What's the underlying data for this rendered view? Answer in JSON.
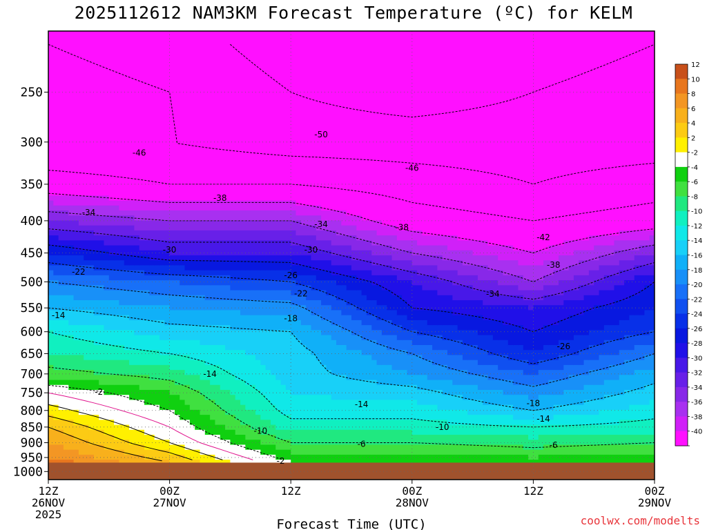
{
  "title": "2025112612 NAM3KM Forecast Temperature (ºC) for KELM",
  "watermark": "coolwx.com/modelts",
  "chart_data": {
    "type": "heatmap",
    "title": "2025112612 NAM3KM Forecast Temperature (ºC) for KELM",
    "xlabel": "Forecast Time (UTC)",
    "ylabel": "",
    "x_ticks": [
      {
        "hour": 0,
        "lines": [
          "12Z",
          "26NOV",
          "2025"
        ]
      },
      {
        "hour": 12,
        "lines": [
          "00Z",
          "27NOV"
        ]
      },
      {
        "hour": 24,
        "lines": [
          "12Z",
          ""
        ]
      },
      {
        "hour": 36,
        "lines": [
          "00Z",
          "28NOV"
        ]
      },
      {
        "hour": 48,
        "lines": [
          "12Z",
          ""
        ]
      },
      {
        "hour": 60,
        "lines": [
          "00Z",
          "29NOV"
        ]
      }
    ],
    "y_ticks": [
      250,
      300,
      350,
      400,
      450,
      500,
      550,
      600,
      650,
      700,
      750,
      800,
      850,
      900,
      950,
      1000
    ],
    "ylim": [
      200,
      1030
    ],
    "xlim": [
      0,
      60
    ],
    "log_pressure_axis": true,
    "grid": true,
    "colorbar": {
      "labels": [
        "12",
        "10",
        "8",
        "6",
        "4",
        "2",
        "-2",
        "-4",
        "-6",
        "-8",
        "-10",
        "-12",
        "-14",
        "-16",
        "-18",
        "-20",
        "-22",
        "-24",
        "-26",
        "-28",
        "-30",
        "-32",
        "-34",
        "-36",
        "-38",
        "-40"
      ],
      "colors": [
        "#c8501a",
        "#e8761e",
        "#f39624",
        "#f8b01c",
        "#fccb14",
        "#fff000",
        "#ffffff",
        "#10d010",
        "#40e040",
        "#20e880",
        "#10f0c0",
        "#10e8e8",
        "#18d0f8",
        "#10b0f8",
        "#1890f8",
        "#1870f8",
        "#1050f0",
        "#0830e8",
        "#0818e0",
        "#2010e8",
        "#4818e8",
        "#6820e8",
        "#8828e8",
        "#a830f0",
        "#d020f8",
        "#ff10ff"
      ]
    },
    "profiles": [
      {
        "hour": 0,
        "temps": {
          "250": -44,
          "300": -46,
          "350": -40,
          "400": -32,
          "450": -24,
          "500": -18,
          "550": -14,
          "600": -10,
          "650": -8,
          "700": -5,
          "750": 0,
          "800": 3,
          "850": 6,
          "900": 8,
          "950": 10
        }
      },
      {
        "hour": 12,
        "temps": {
          "250": -46,
          "300": -46,
          "350": -42,
          "400": -34,
          "450": -28,
          "500": -20,
          "550": -16,
          "600": -13,
          "650": -10,
          "700": -7,
          "750": -4,
          "800": -2,
          "850": 0,
          "900": 2,
          "950": 5
        }
      },
      {
        "hour": 24,
        "temps": {
          "250": -50,
          "300": -48,
          "350": -42,
          "400": -34,
          "450": -28,
          "500": -22,
          "550": -17,
          "600": -14,
          "650": -13,
          "700": -13,
          "750": -12,
          "800": -11,
          "850": -9,
          "900": -6,
          "950": -3
        }
      },
      {
        "hour": 36,
        "temps": {
          "250": -52,
          "300": -48,
          "350": -44,
          "400": -40,
          "450": -34,
          "500": -28,
          "550": -26,
          "600": -22,
          "650": -18,
          "700": -16,
          "750": -13,
          "800": -11,
          "850": -9,
          "900": -6,
          "950": -3
        }
      },
      {
        "hour": 48,
        "temps": {
          "250": -50,
          "300": -48,
          "350": -46,
          "400": -42,
          "450": -38,
          "500": -34,
          "550": -28,
          "600": -26,
          "650": -24,
          "700": -20,
          "750": -17,
          "800": -14,
          "850": -10,
          "900": -7,
          "950": -4
        }
      },
      {
        "hour": 60,
        "temps": {
          "250": -48,
          "300": -48,
          "350": -44,
          "400": -40,
          "450": -32,
          "500": -26,
          "550": -24,
          "600": -22,
          "650": -18,
          "700": -15,
          "750": -13,
          "800": -11,
          "850": -9,
          "900": -6,
          "950": -3
        }
      }
    ],
    "contour_labels": [
      {
        "text": "-50",
        "hour": 27,
        "p": 292
      },
      {
        "text": "-46",
        "hour": 9,
        "p": 312
      },
      {
        "text": "-46",
        "hour": 36,
        "p": 330
      },
      {
        "text": "-38",
        "hour": 17,
        "p": 368
      },
      {
        "text": "-34",
        "hour": 4,
        "p": 388
      },
      {
        "text": "-34",
        "hour": 27,
        "p": 405
      },
      {
        "text": "-38",
        "hour": 35,
        "p": 410
      },
      {
        "text": "-42",
        "hour": 49,
        "p": 425
      },
      {
        "text": "-30",
        "hour": 12,
        "p": 445
      },
      {
        "text": "-30",
        "hour": 26,
        "p": 445
      },
      {
        "text": "-38",
        "hour": 50,
        "p": 470
      },
      {
        "text": "-22",
        "hour": 3,
        "p": 482
      },
      {
        "text": "-26",
        "hour": 24,
        "p": 488
      },
      {
        "text": "-22",
        "hour": 25,
        "p": 522
      },
      {
        "text": "-34",
        "hour": 44,
        "p": 523
      },
      {
        "text": "-14",
        "hour": 1,
        "p": 565
      },
      {
        "text": "-18",
        "hour": 24,
        "p": 572
      },
      {
        "text": "-26",
        "hour": 51,
        "p": 633
      },
      {
        "text": "-14",
        "hour": 16,
        "p": 700
      },
      {
        "text": "-2",
        "hour": 5,
        "p": 748
      },
      {
        "text": "-14",
        "hour": 31,
        "p": 782
      },
      {
        "text": "-18",
        "hour": 48,
        "p": 780
      },
      {
        "text": "-14",
        "hour": 49,
        "p": 825
      },
      {
        "text": "-10",
        "hour": 39,
        "p": 850
      },
      {
        "text": "-10",
        "hour": 21,
        "p": 862
      },
      {
        "text": "-6",
        "hour": 31,
        "p": 905
      },
      {
        "text": "-6",
        "hour": 50,
        "p": 908
      },
      {
        "text": "-2",
        "hour": 23,
        "p": 962
      }
    ]
  }
}
